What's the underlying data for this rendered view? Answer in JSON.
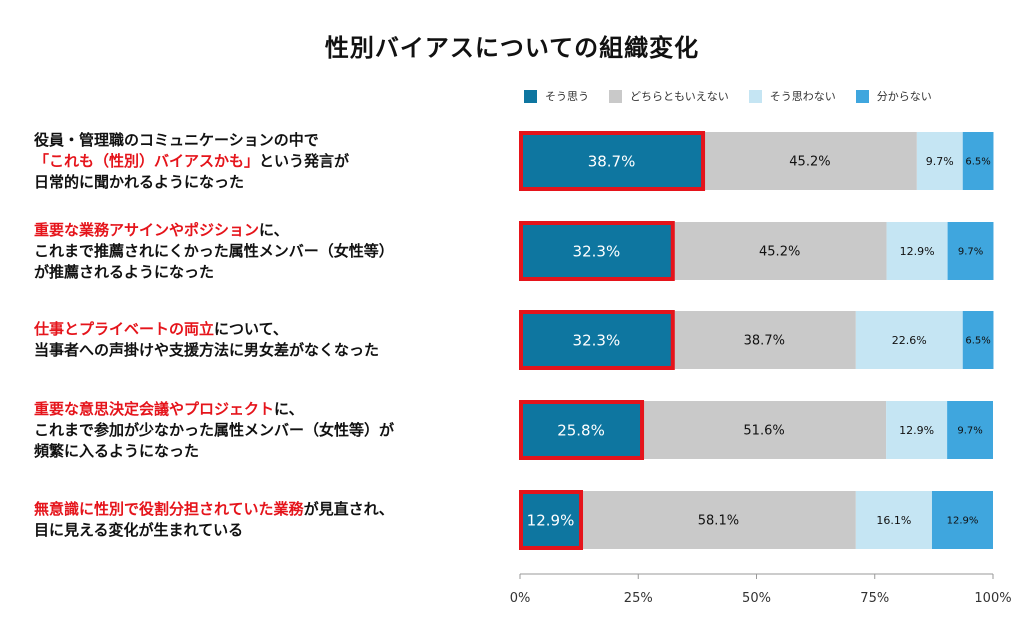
{
  "title": "性別バイアスについての組織変化",
  "colors": {
    "そう思う": "#0e76a0",
    "どちらともいえない": "#c9c9c9",
    "そう思わない": "#c5e5f3",
    "分からない": "#3fa6de",
    "highlight": "#e5141b"
  },
  "legend": [
    "そう思う",
    "どちらともいえない",
    "そう思わない",
    "分からない"
  ],
  "row_labels": [
    {
      "lines": [
        [
          {
            "text": "役員・管理職のコミュニケーションの中で",
            "red": false
          }
        ],
        [
          {
            "text": "「これも（性別）バイアスかも」",
            "red": true
          },
          {
            "text": "という発言が",
            "red": false
          }
        ],
        [
          {
            "text": "日常的に聞かれるようになった",
            "red": false
          }
        ]
      ]
    },
    {
      "lines": [
        [
          {
            "text": "重要な業務アサインやポジション",
            "red": true
          },
          {
            "text": "に、",
            "red": false
          }
        ],
        [
          {
            "text": "これまで推薦されにくかった属性メンバー（女性等）",
            "red": false
          }
        ],
        [
          {
            "text": "が推薦されるようになった",
            "red": false
          }
        ]
      ]
    },
    {
      "lines": [
        [
          {
            "text": "仕事とプライベートの両立",
            "red": true
          },
          {
            "text": "について、",
            "red": false
          }
        ],
        [
          {
            "text": "当事者への声掛けや支援方法に男女差がなくなった",
            "red": false
          }
        ]
      ]
    },
    {
      "lines": [
        [
          {
            "text": "重要な意思決定会議やプロジェクト",
            "red": true
          },
          {
            "text": "に、",
            "red": false
          }
        ],
        [
          {
            "text": "これまで参加が少なかった属性メンバー（女性等）が",
            "red": false
          }
        ],
        [
          {
            "text": "頻繁に入るようになった",
            "red": false
          }
        ]
      ]
    },
    {
      "lines": [
        [
          {
            "text": "無意識に性別で役割分担されていた業務",
            "red": true
          },
          {
            "text": "が見直され、",
            "red": false
          }
        ],
        [
          {
            "text": "目に見える変化が生まれている",
            "red": false
          }
        ]
      ]
    }
  ],
  "chart_data": {
    "type": "bar",
    "orientation": "horizontal-stacked-100",
    "title": "性別バイアスについての組織変化",
    "series": [
      {
        "name": "そう思う",
        "values": [
          38.7,
          32.3,
          32.3,
          25.8,
          12.9
        ],
        "labels": [
          "38.7%",
          "32.3%",
          "32.3%",
          "25.8%",
          "12.9%"
        ]
      },
      {
        "name": "どちらともいえない",
        "values": [
          45.2,
          45.2,
          38.7,
          51.6,
          58.1
        ],
        "labels": [
          "45.2%",
          "45.2%",
          "38.7%",
          "51.6%",
          "58.1%"
        ]
      },
      {
        "name": "そう思わない",
        "values": [
          9.7,
          12.9,
          22.6,
          12.9,
          16.1
        ],
        "labels": [
          "9.7%",
          "12.9%",
          "22.6%",
          "12.9%",
          "16.1%"
        ]
      },
      {
        "name": "分からない",
        "values": [
          6.5,
          9.7,
          6.5,
          9.7,
          12.9
        ],
        "labels": [
          "6.5%",
          "9.7%",
          "6.5%",
          "9.7%",
          "12.9%"
        ]
      }
    ],
    "xlim": [
      0,
      100
    ],
    "ticks": [
      0,
      25,
      50,
      75,
      100
    ],
    "tick_labels": [
      "0%",
      "25%",
      "50%",
      "75%",
      "100%"
    ],
    "grid": false,
    "legend_position": "top",
    "highlight_series": "そう思う"
  }
}
